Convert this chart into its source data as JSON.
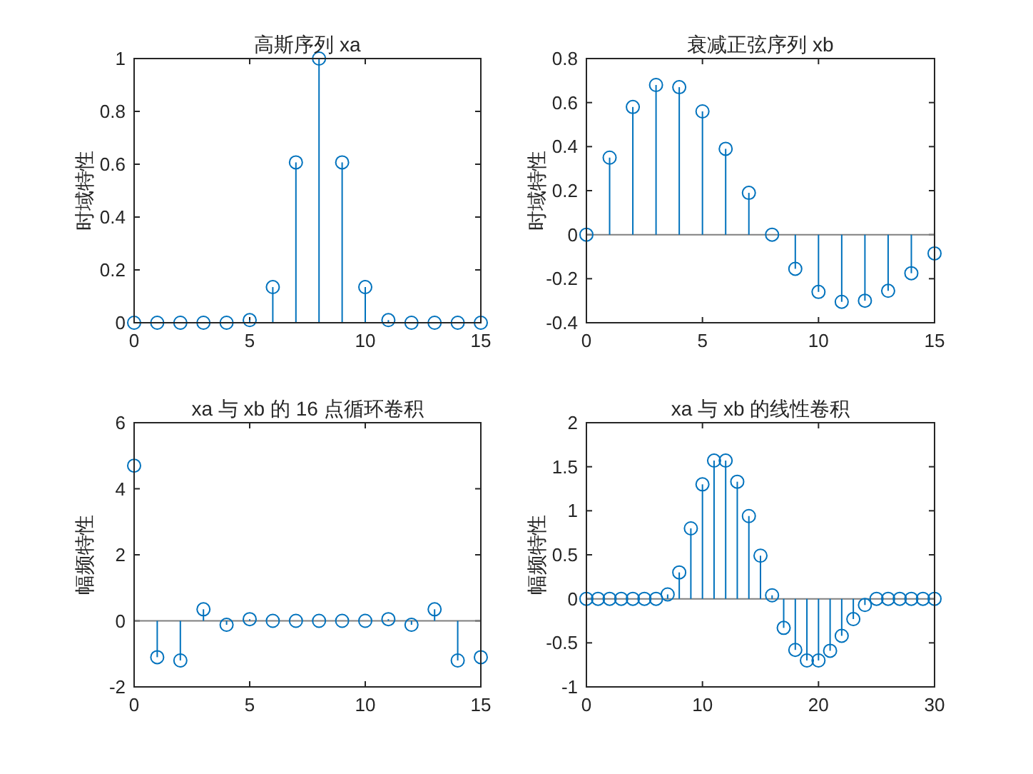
{
  "chart_data": [
    {
      "type": "lollipop",
      "title": "高斯序列 xa",
      "ylabel": "时域特性",
      "marker": "circle",
      "color": "#0072bd",
      "x": [
        0,
        1,
        2,
        3,
        4,
        5,
        6,
        7,
        8,
        9,
        10,
        11,
        12,
        13,
        14,
        15
      ],
      "values": [
        0,
        0,
        0,
        0,
        0,
        0.01,
        0.135,
        0.607,
        1,
        0.607,
        0.135,
        0.01,
        0,
        0,
        0,
        0
      ],
      "xlim": [
        0,
        15
      ],
      "ylim": [
        0,
        1
      ],
      "xticks": [
        0,
        5,
        10,
        15
      ],
      "yticks": [
        0,
        0.2,
        0.4,
        0.6,
        0.8,
        1
      ]
    },
    {
      "type": "lollipop",
      "title": "衰减正弦序列 xb",
      "ylabel": "时域特性",
      "marker": "circle",
      "color": "#0072bd",
      "x": [
        0,
        1,
        2,
        3,
        4,
        5,
        6,
        7,
        8,
        9,
        10,
        11,
        12,
        13,
        14,
        15
      ],
      "values": [
        0,
        0.35,
        0.58,
        0.68,
        0.67,
        0.56,
        0.39,
        0.19,
        0,
        -0.155,
        -0.26,
        -0.305,
        -0.3,
        -0.255,
        -0.175,
        -0.085
      ],
      "xlim": [
        0,
        15
      ],
      "ylim": [
        -0.4,
        0.8
      ],
      "xticks": [
        0,
        5,
        10,
        15
      ],
      "yticks": [
        -0.4,
        -0.2,
        0,
        0.2,
        0.4,
        0.6,
        0.8
      ],
      "ref_lines": [
        {
          "axis": "y",
          "value": 0,
          "color": "#7f7f7f"
        }
      ]
    },
    {
      "type": "lollipop",
      "title": "xa 与 xb 的 16 点循环卷积",
      "ylabel": "幅频特性",
      "marker": "circle",
      "color": "#0072bd",
      "x": [
        0,
        1,
        2,
        3,
        4,
        5,
        6,
        7,
        8,
        9,
        10,
        11,
        12,
        13,
        14,
        15
      ],
      "values": [
        4.7,
        -1.1,
        -1.2,
        0.35,
        -0.12,
        0.05,
        0,
        0,
        0,
        0,
        0,
        0.05,
        -0.12,
        0.35,
        -1.2,
        -1.1
      ],
      "xlim": [
        0,
        15
      ],
      "ylim": [
        -2,
        6
      ],
      "xticks": [
        0,
        5,
        10,
        15
      ],
      "yticks": [
        -2,
        0,
        2,
        4,
        6
      ],
      "ref_lines": [
        {
          "axis": "y",
          "value": 0,
          "color": "#7f7f7f"
        }
      ]
    },
    {
      "type": "lollipop",
      "title": "xa 与 xb 的线性卷积",
      "ylabel": "幅频特性",
      "marker": "circle",
      "color": "#0072bd",
      "x": [
        0,
        1,
        2,
        3,
        4,
        5,
        6,
        7,
        8,
        9,
        10,
        11,
        12,
        13,
        14,
        15,
        16,
        17,
        18,
        19,
        20,
        21,
        22,
        23,
        24,
        25,
        26,
        27,
        28,
        29,
        30
      ],
      "values": [
        0,
        0,
        0,
        0,
        0,
        0,
        0,
        0.05,
        0.3,
        0.8,
        1.3,
        1.57,
        1.57,
        1.33,
        0.94,
        0.49,
        0.04,
        -0.33,
        -0.58,
        -0.7,
        -0.7,
        -0.59,
        -0.42,
        -0.23,
        -0.07,
        0,
        0,
        0,
        0,
        0,
        0
      ],
      "xlim": [
        0,
        30
      ],
      "ylim": [
        -1,
        2
      ],
      "xticks": [
        0,
        10,
        20,
        30
      ],
      "yticks": [
        -1,
        -0.5,
        0,
        0.5,
        1,
        1.5,
        2
      ],
      "ref_lines": [
        {
          "axis": "y",
          "value": 0,
          "color": "#7f7f7f"
        }
      ]
    }
  ]
}
